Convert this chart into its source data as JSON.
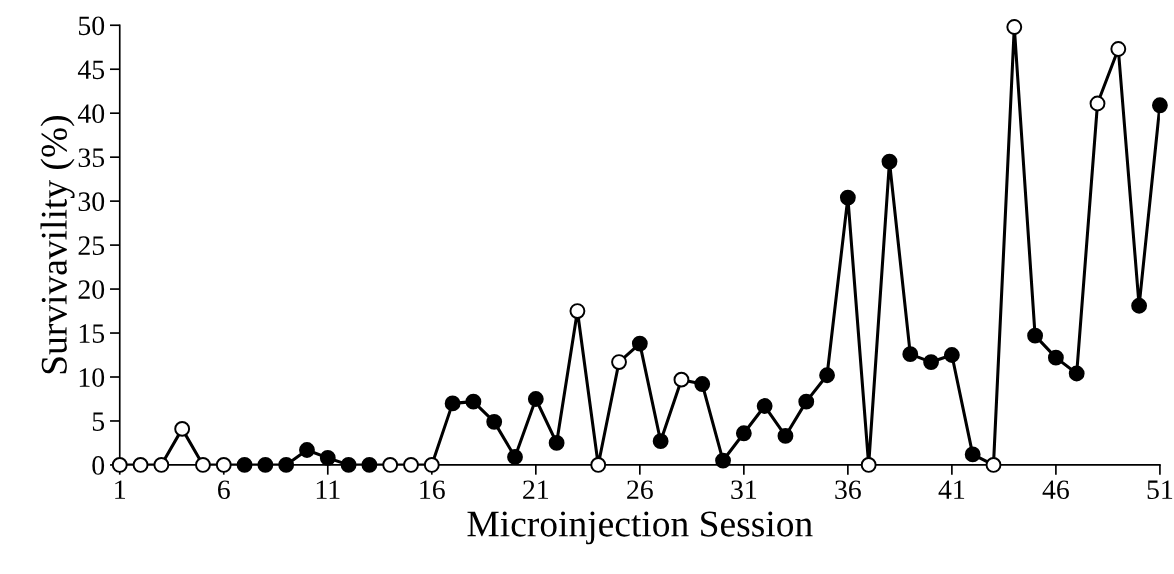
{
  "chart_data": {
    "type": "line",
    "xlabel": "Microinjection Session",
    "ylabel": "Survivavility (%)",
    "x": [
      1,
      2,
      3,
      4,
      5,
      6,
      7,
      8,
      9,
      10,
      11,
      12,
      13,
      14,
      15,
      16,
      17,
      18,
      19,
      20,
      21,
      22,
      23,
      24,
      25,
      26,
      27,
      28,
      29,
      30,
      31,
      32,
      33,
      34,
      35,
      36,
      37,
      38,
      39,
      40,
      41,
      42,
      43,
      44,
      45,
      46,
      47,
      48,
      49,
      50,
      51
    ],
    "series": [
      {
        "color": "#000000",
        "values": [
          0,
          0,
          0,
          4.1,
          0,
          0,
          0,
          0,
          0,
          1.7,
          0.8,
          0,
          0,
          0,
          0,
          0,
          7.0,
          7.2,
          4.9,
          0.9,
          7.5,
          2.5,
          17.5,
          0,
          11.7,
          13.8,
          2.7,
          9.7,
          9.2,
          0.5,
          3.6,
          6.7,
          3.3,
          7.2,
          10.2,
          30.4,
          0,
          34.5,
          12.6,
          11.7,
          12.5,
          1.2,
          0,
          49.8,
          14.7,
          12.2,
          10.4,
          41.1,
          47.3,
          18.1,
          40.9
        ],
        "colors": [
          "#ffffff",
          "#ffffff",
          "#ffffff",
          "#ffffff",
          "#ffffff",
          "#ffffff",
          "#000000",
          "#000000",
          "#000000",
          "#000000",
          "#000000",
          "#000000",
          "#000000",
          "#ffffff",
          "#ffffff",
          "#ffffff",
          "#000000",
          "#000000",
          "#000000",
          "#000000",
          "#000000",
          "#000000",
          "#ffffff",
          "#ffffff",
          "#ffffff",
          "#000000",
          "#000000",
          "#ffffff",
          "#000000",
          "#000000",
          "#000000",
          "#000000",
          "#000000",
          "#000000",
          "#000000",
          "#000000",
          "#ffffff",
          "#000000",
          "#000000",
          "#000000",
          "#000000",
          "#000000",
          "#ffffff",
          "#ffffff",
          "#000000",
          "#000000",
          "#000000",
          "#ffffff",
          "#ffffff",
          "#000000",
          "#000000"
        ]
      }
    ],
    "xlim": [
      1,
      51
    ],
    "xticks": [
      1,
      6,
      11,
      16,
      21,
      26,
      31,
      36,
      41,
      46,
      51
    ],
    "ylim": [
      0,
      50
    ],
    "yticks": [
      0,
      5,
      10,
      15,
      20,
      25,
      30,
      35,
      40,
      45,
      50
    ],
    "marker": "circle",
    "line_style": "solid",
    "grid": false,
    "legend": false
  }
}
